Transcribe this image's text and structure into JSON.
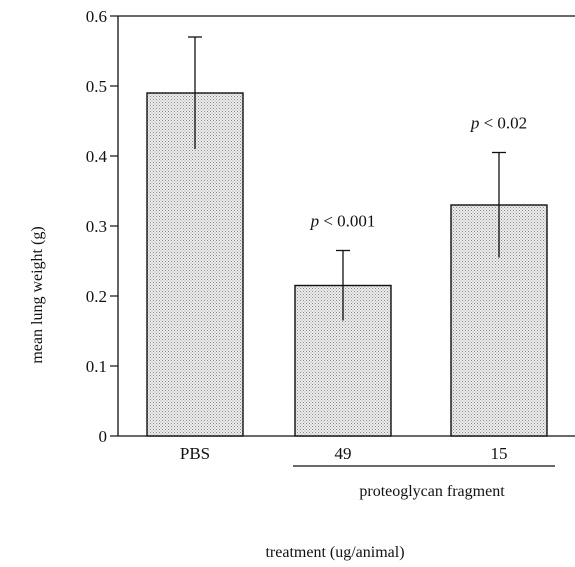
{
  "chart_data": {
    "type": "bar",
    "categories": [
      "PBS",
      "49",
      "15"
    ],
    "values": [
      0.49,
      0.215,
      0.33
    ],
    "error_upper": [
      0.57,
      0.265,
      0.405
    ],
    "error_lower": [
      0.41,
      0.165,
      0.255
    ],
    "ylabel": "mean lung weight (g)",
    "xlabel": "treatment (ug/animal)",
    "group_label": "proteoglycan fragment",
    "group_members": [
      "49",
      "15"
    ],
    "annotations": [
      {
        "category": "49",
        "prefix": "p",
        "text": "< 0.001"
      },
      {
        "category": "15",
        "prefix": "p",
        "text": "< 0.02"
      }
    ],
    "ylim": [
      0,
      0.6
    ],
    "yticks": [
      0,
      0.1,
      0.2,
      0.3,
      0.4,
      0.5,
      0.6
    ],
    "ytick_labels": [
      "0",
      "0.1",
      "0.2",
      "0.3",
      "0.4",
      "0.5",
      "0.6"
    ],
    "grid": false,
    "bar_fill": "#d9d9d9",
    "bar_stroke": "#111111"
  }
}
